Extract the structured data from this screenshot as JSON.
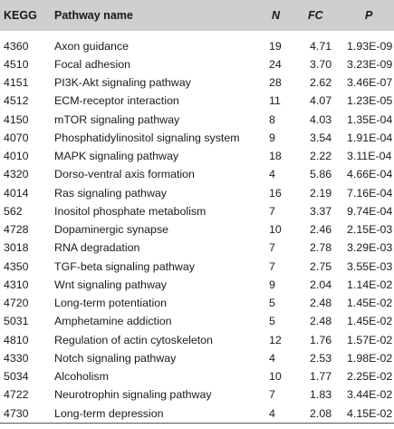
{
  "table": {
    "headers": {
      "kegg": "KEGG",
      "pathway": "Pathway name",
      "n": "N",
      "fc": "FC",
      "p": "P"
    },
    "rows": [
      {
        "kegg": "4360",
        "pathway": "Axon guidance",
        "n": "19",
        "fc": "4.71",
        "p": "1.93E-09"
      },
      {
        "kegg": "4510",
        "pathway": "Focal adhesion",
        "n": "24",
        "fc": "3.70",
        "p": "3.23E-09"
      },
      {
        "kegg": "4151",
        "pathway": "PI3K-Akt signaling pathway",
        "n": "28",
        "fc": "2.62",
        "p": "3.46E-07"
      },
      {
        "kegg": "4512",
        "pathway": "ECM-receptor interaction",
        "n": "11",
        "fc": "4.07",
        "p": "1.23E-05"
      },
      {
        "kegg": "4150",
        "pathway": "mTOR signaling pathway",
        "n": "8",
        "fc": "4.03",
        "p": "1.35E-04"
      },
      {
        "kegg": "4070",
        "pathway": "Phosphatidylinositol signaling system",
        "n": "9",
        "fc": "3.54",
        "p": "1.91E-04"
      },
      {
        "kegg": "4010",
        "pathway": "MAPK signaling pathway",
        "n": "18",
        "fc": "2.22",
        "p": "3.11E-04"
      },
      {
        "kegg": "4320",
        "pathway": "Dorso-ventral axis formation",
        "n": "4",
        "fc": "5.86",
        "p": "4.66E-04"
      },
      {
        "kegg": "4014",
        "pathway": "Ras signaling pathway",
        "n": "16",
        "fc": "2.19",
        "p": "7.16E-04"
      },
      {
        "kegg": "562",
        "pathway": "Inositol phosphate metabolism",
        "n": "7",
        "fc": "3.37",
        "p": "9.74E-04"
      },
      {
        "kegg": "4728",
        "pathway": "Dopaminergic synapse",
        "n": "10",
        "fc": "2.46",
        "p": "2.15E-03"
      },
      {
        "kegg": "3018",
        "pathway": "RNA degradation",
        "n": "7",
        "fc": "2.78",
        "p": "3.29E-03"
      },
      {
        "kegg": "4350",
        "pathway": "TGF-beta signaling pathway",
        "n": "7",
        "fc": "2.75",
        "p": "3.55E-03"
      },
      {
        "kegg": "4310",
        "pathway": "Wnt signaling pathway",
        "n": "9",
        "fc": "2.04",
        "p": "1.14E-02"
      },
      {
        "kegg": "4720",
        "pathway": "Long-term potentiation",
        "n": "5",
        "fc": "2.48",
        "p": "1.45E-02"
      },
      {
        "kegg": "5031",
        "pathway": "Amphetamine addiction",
        "n": "5",
        "fc": "2.48",
        "p": "1.45E-02"
      },
      {
        "kegg": "4810",
        "pathway": "Regulation of actin cytoskeleton",
        "n": "12",
        "fc": "1.76",
        "p": "1.57E-02"
      },
      {
        "kegg": "4330",
        "pathway": "Notch signaling pathway",
        "n": "4",
        "fc": "2.53",
        "p": "1.98E-02"
      },
      {
        "kegg": "5034",
        "pathway": "Alcoholism",
        "n": "10",
        "fc": "1.77",
        "p": "2.25E-02"
      },
      {
        "kegg": "4722",
        "pathway": "Neurotrophin signaling pathway",
        "n": "7",
        "fc": "1.83",
        "p": "3.44E-02"
      },
      {
        "kegg": "4730",
        "pathway": "Long-term depression",
        "n": "4",
        "fc": "2.08",
        "p": "4.15E-02"
      }
    ]
  },
  "colors": {
    "header_bg": "#cfcfcf",
    "text": "#1a1a1a"
  }
}
